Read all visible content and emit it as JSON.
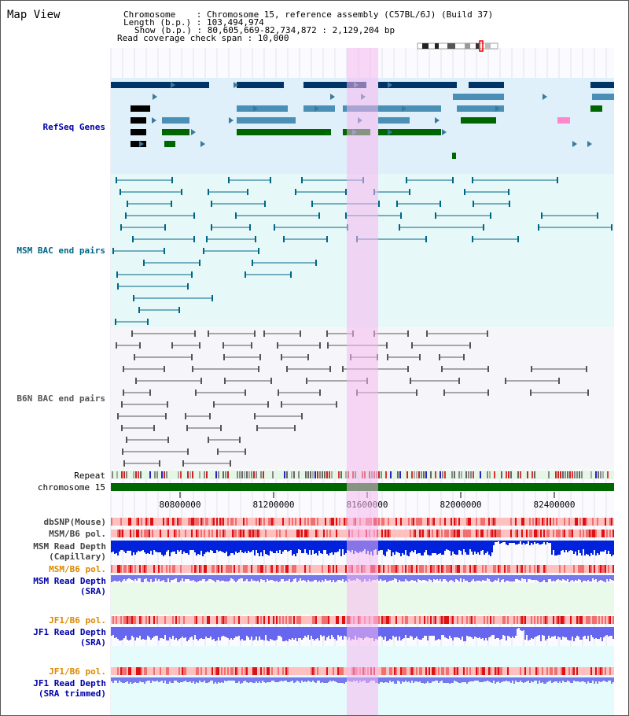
{
  "title": "Map View",
  "info": {
    "chromosome_line": "Chromosome    : Chromosome 15, reference assembly (C57BL/6J) (Build 37)",
    "length_line": "Length (b.p.) : 103,494,974",
    "show_line": "Show (b.p.) : 80,605,669-82,734,872 : 2,129,204 bp",
    "read_line": "Read coverage check span : 10,000"
  },
  "tracks": {
    "refseq": "RefSeq Genes",
    "msm_bac": "MSM BAC end pairs",
    "b6n_bac": "B6N BAC end pairs",
    "repeat": "Repeat",
    "chromosome": "chromosome 15",
    "dbsnp": "dbSNP(Mouse)",
    "msm_b6_pol_1": "MSM/B6 pol.",
    "msm_depth_cap": "MSM Read Depth\n(Capillary)",
    "msm_b6_pol_2": "MSM/B6 pol.",
    "msm_depth_sra": "MSM Read Depth\n(SRA)",
    "jf1_b6_pol_1": "JF1/B6 pol.",
    "jf1_depth_sra": "JF1 Read Depth\n(SRA)",
    "jf1_b6_pol_2": "JF1/B6 pol.",
    "jf1_depth_trim": "JF1 Read Depth\n(SRA trimmed)"
  },
  "axis_ticks": [
    "80800000",
    "81200000",
    "81600000",
    "82000000",
    "82400000"
  ],
  "colors": {
    "refseq_label": "#0000aa",
    "msm_label": "#006688",
    "b6n_label": "#555555",
    "pol_orange": "#dd8800",
    "depth_blue": "#0000aa",
    "highlight": "#f5c8f0",
    "chromosome_green": "#006600"
  }
}
